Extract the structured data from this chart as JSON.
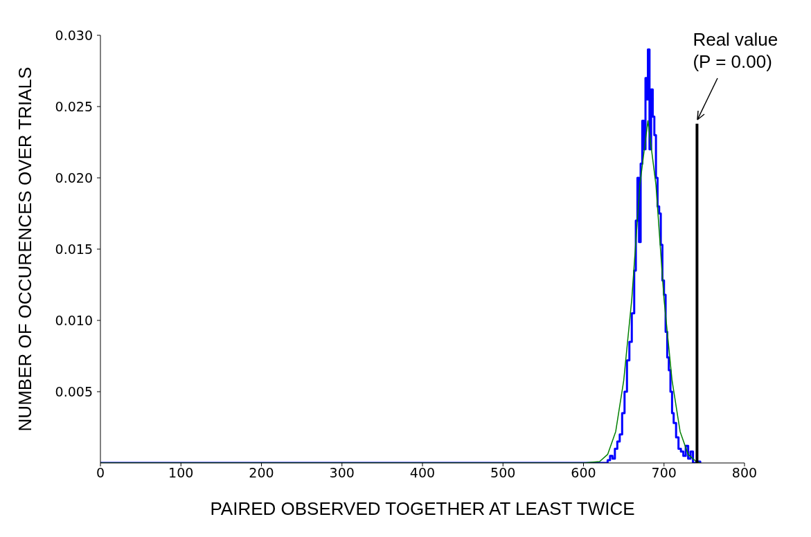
{
  "chart_data": {
    "type": "step",
    "xlabel": "PAIRED OBSERVED TOGETHER AT LEAST TWICE",
    "ylabel": "NUMBER OF OCCURENCES OVER TRIALS",
    "xlim": [
      0,
      800
    ],
    "xticks": [
      0,
      100,
      200,
      300,
      400,
      500,
      600,
      700,
      800
    ],
    "ylim": [
      0,
      0.03
    ],
    "yticks": [
      0.005,
      {
        "value": 0.01,
        "label": "0.010"
      },
      0.015,
      {
        "value": 0.02,
        "label": "0.020"
      },
      0.025,
      {
        "value": 0.03,
        "label": "0.030"
      }
    ],
    "marker": "none",
    "line_style": "solid",
    "series": [
      {
        "type": "step",
        "color": "#0000ff",
        "x": [
          0,
          625,
          630,
          633,
          636,
          639,
          642,
          645,
          648,
          651,
          654,
          657,
          660,
          663,
          665,
          667,
          669,
          671,
          673,
          675,
          677,
          679,
          680,
          682,
          684,
          686,
          688,
          690,
          692,
          694,
          696,
          698,
          700,
          702,
          704,
          706,
          708,
          710,
          712,
          715,
          718,
          721,
          724,
          727,
          730,
          733,
          736,
          740,
          745
        ],
        "values": [
          0,
          0,
          0.0002,
          0.0005,
          0.0003,
          0.001,
          0.0015,
          0.002,
          0.0035,
          0.005,
          0.0072,
          0.0085,
          0.0105,
          0.0135,
          0.017,
          0.02,
          0.0155,
          0.021,
          0.024,
          0.022,
          0.027,
          0.0255,
          0.029,
          0.022,
          0.0262,
          0.0243,
          0.023,
          0.02,
          0.018,
          0.0175,
          0.0153,
          0.0128,
          0.0118,
          0.0092,
          0.0074,
          0.0065,
          0.005,
          0.0035,
          0.0028,
          0.0018,
          0.001,
          0.0008,
          0.0005,
          0.0012,
          0.0003,
          0.0008,
          0,
          0.0001,
          0
        ]
      },
      {
        "type": "line",
        "color": "#008000",
        "x": [
          0,
          600,
          620,
          630,
          640,
          650,
          660,
          670,
          680,
          690,
          700,
          710,
          720,
          730,
          740,
          745
        ],
        "values": [
          0,
          0,
          0.0001,
          0.0006,
          0.0022,
          0.0058,
          0.0115,
          0.0195,
          0.024,
          0.0195,
          0.0115,
          0.0058,
          0.0022,
          0.0006,
          0.0001,
          0
        ]
      },
      {
        "type": "line",
        "color": "#000000",
        "x": [
          741,
          741
        ],
        "values": [
          0,
          0.0238
        ]
      }
    ],
    "annotations": [
      "Real value\n(P = 0.00)"
    ]
  }
}
